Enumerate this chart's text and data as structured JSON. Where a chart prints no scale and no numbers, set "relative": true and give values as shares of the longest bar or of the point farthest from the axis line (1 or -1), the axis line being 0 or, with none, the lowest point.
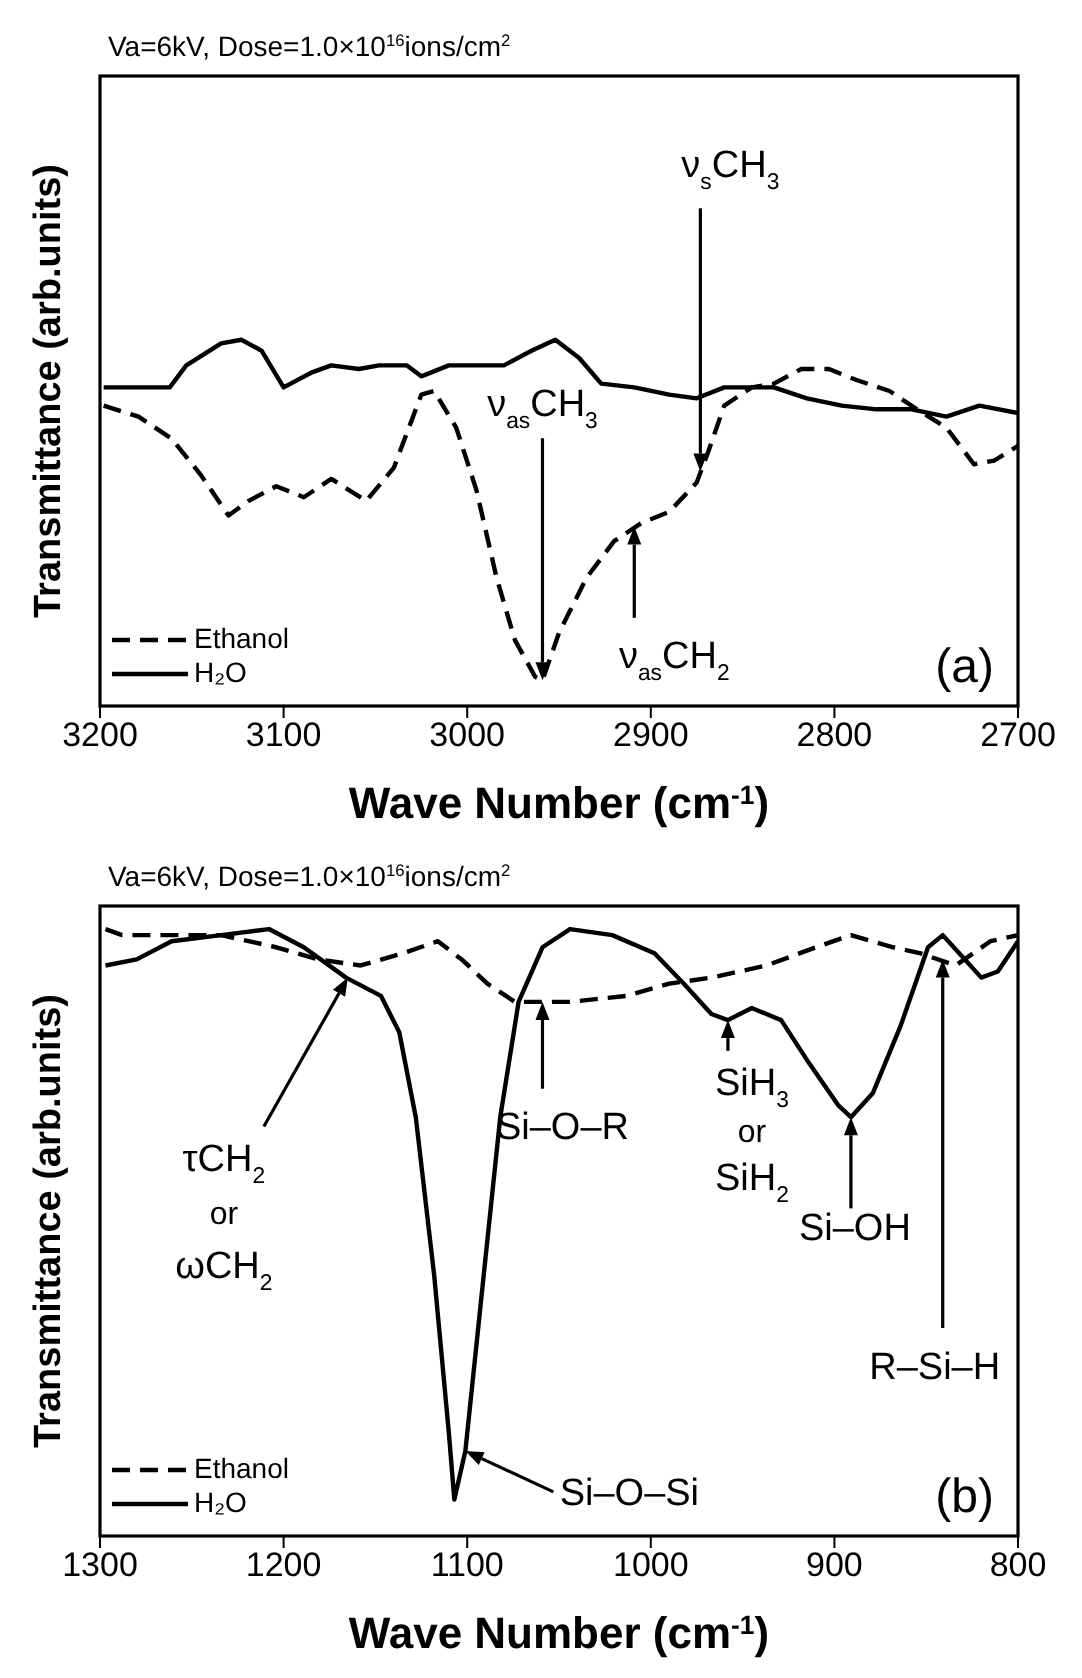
{
  "chart_data": [
    {
      "type": "line",
      "title": "Va=6kV, Dose=1.0×10$^{16}$ions/cm$^{2}$",
      "xlabel": "Wave Number (cm$^{-1}$)",
      "ylabel": "Transmittance (arb.units)",
      "relative": true,
      "xlim": [
        3200,
        2700
      ],
      "xticks": [
        3200,
        3100,
        3000,
        2900,
        2800,
        2700
      ],
      "legend": "bottom left",
      "series": [
        {
          "name": "Ethanol",
          "color": "#000000",
          "line_style": "dashed",
          "x": [
            3198,
            3179,
            3161,
            3145,
            3130,
            3119,
            3104,
            3089,
            3074,
            3055,
            3040,
            3025,
            3018,
            3006,
            2995,
            2984,
            2974,
            2963,
            2959,
            2950,
            2935,
            2920,
            2905,
            2890,
            2875,
            2869,
            2860,
            2845,
            2833,
            2818,
            2803,
            2788,
            2770,
            2755,
            2739,
            2724,
            2713,
            2700
          ],
          "values": [
            0.82,
            0.79,
            0.73,
            0.63,
            0.52,
            0.56,
            0.6,
            0.57,
            0.62,
            0.56,
            0.65,
            0.85,
            0.86,
            0.76,
            0.59,
            0.35,
            0.18,
            0.08,
            0.07,
            0.2,
            0.35,
            0.45,
            0.5,
            0.53,
            0.61,
            0.69,
            0.82,
            0.87,
            0.88,
            0.92,
            0.92,
            0.89,
            0.86,
            0.81,
            0.76,
            0.66,
            0.67,
            0.71
          ]
        },
        {
          "name": "H₂O",
          "color": "#000000",
          "line_style": "solid",
          "x": [
            3198,
            3179,
            3162,
            3153,
            3134,
            3123,
            3112,
            3100,
            3085,
            3074,
            3059,
            3048,
            3033,
            3025,
            3010,
            2995,
            2980,
            2965,
            2952,
            2939,
            2927,
            2909,
            2890,
            2875,
            2860,
            2833,
            2815,
            2796,
            2777,
            2758,
            2739,
            2721,
            2700
          ],
          "values": [
            0.87,
            0.87,
            0.87,
            0.93,
            0.99,
            1.0,
            0.97,
            0.87,
            0.91,
            0.93,
            0.92,
            0.93,
            0.93,
            0.9,
            0.93,
            0.93,
            0.93,
            0.97,
            1.0,
            0.95,
            0.88,
            0.87,
            0.85,
            0.84,
            0.87,
            0.87,
            0.84,
            0.82,
            0.81,
            0.81,
            0.79,
            0.82,
            0.8
          ]
        }
      ],
      "annotations": [
        "ν$_{as}$CH$_{3}$",
        {
          "text": "ν$_{s}$CH$_{3}$",
          "x": 2873,
          "y": 0.64
        },
        {
          "text": "ν$_{as}$CH$_{2}$",
          "x": 2909,
          "y": 0.49
        },
        "(a)"
      ]
    },
    {
      "type": "line",
      "title": "Va=6kV, Dose=1.0×10$^{16}$ions/cm$^{2}$",
      "xlabel": "Wave Number (cm$^{-1}$)",
      "ylabel": "Transmittance (arb.units)",
      "relative": true,
      "xlim": [
        1300,
        800
      ],
      "xticks": [
        1300,
        1200,
        1100,
        1000,
        900,
        800
      ],
      "legend": "bottom left",
      "series": [
        {
          "name": "Ethanol",
          "color": "#000000",
          "line_style": "dashed",
          "x": [
            1297,
            1288,
            1265,
            1234,
            1204,
            1181,
            1158,
            1135,
            1116,
            1103,
            1089,
            1074,
            1044,
            1013,
            990,
            967,
            937,
            910,
            891,
            868,
            853,
            834,
            815,
            800
          ],
          "values": [
            1.0,
            0.99,
            0.99,
            0.99,
            0.97,
            0.95,
            0.94,
            0.96,
            0.98,
            0.95,
            0.91,
            0.88,
            0.88,
            0.89,
            0.91,
            0.92,
            0.94,
            0.97,
            0.99,
            0.97,
            0.96,
            0.94,
            0.98,
            0.99
          ]
        },
        {
          "name": "H₂O",
          "color": "#000000",
          "line_style": "solid",
          "x": [
            1297,
            1280,
            1261,
            1234,
            1208,
            1189,
            1166,
            1147,
            1137,
            1128,
            1118,
            1110,
            1107,
            1101,
            1091,
            1082,
            1072,
            1059,
            1044,
            1021,
            998,
            982,
            967,
            958,
            945,
            929,
            914,
            898,
            891,
            879,
            864,
            849,
            841,
            832,
            820,
            811,
            800
          ],
          "values": [
            0.94,
            0.95,
            0.98,
            0.99,
            1.0,
            0.97,
            0.92,
            0.89,
            0.83,
            0.69,
            0.43,
            0.17,
            0.06,
            0.14,
            0.43,
            0.69,
            0.88,
            0.97,
            1.0,
            0.99,
            0.96,
            0.91,
            0.86,
            0.85,
            0.87,
            0.85,
            0.78,
            0.71,
            0.69,
            0.73,
            0.84,
            0.97,
            0.99,
            0.96,
            0.92,
            0.93,
            0.98
          ]
        }
      ],
      "annotations": [
        {
          "text": "τCH$_{2}$\nor\nωCH$_{2}$",
          "x": 1165,
          "y": 0.92
        },
        {
          "text": "Si–O–R",
          "x": 1059,
          "y": 0.88
        },
        {
          "text": "SiH$_{3}$\nor\nSiH$_{2}$",
          "x": 958,
          "y": 0.85
        },
        {
          "text": "Si–OH",
          "x": 891,
          "y": 0.69
        },
        {
          "text": "R–Si–H",
          "x": 841,
          "y": 0.95
        },
        {
          "text": "Si–O–Si",
          "x": 1101,
          "y": 0.14
        },
        "(b)"
      ]
    }
  ]
}
